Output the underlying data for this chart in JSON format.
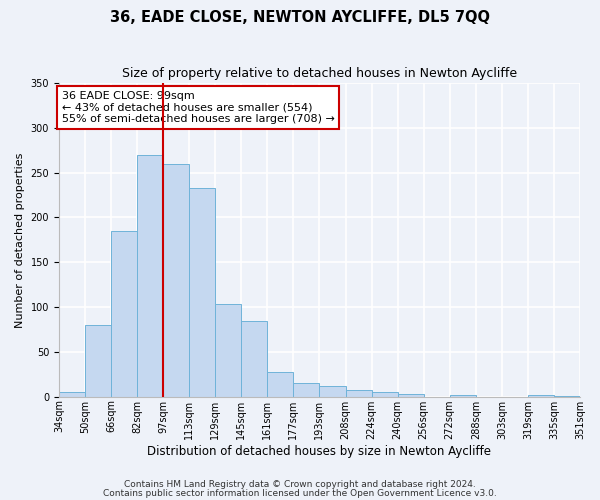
{
  "title": "36, EADE CLOSE, NEWTON AYCLIFFE, DL5 7QQ",
  "subtitle": "Size of property relative to detached houses in Newton Aycliffe",
  "xlabel": "Distribution of detached houses by size in Newton Aycliffe",
  "ylabel": "Number of detached properties",
  "bar_values": [
    5,
    80,
    185,
    270,
    260,
    233,
    103,
    85,
    27,
    15,
    12,
    7,
    5,
    3,
    0,
    2,
    0,
    0,
    2,
    1
  ],
  "bar_labels": [
    "34sqm",
    "50sqm",
    "66sqm",
    "82sqm",
    "97sqm",
    "113sqm",
    "129sqm",
    "145sqm",
    "161sqm",
    "177sqm",
    "193sqm",
    "208sqm",
    "224sqm",
    "240sqm",
    "256sqm",
    "272sqm",
    "288sqm",
    "303sqm",
    "319sqm",
    "335sqm",
    "351sqm"
  ],
  "bar_color": "#c5d8f0",
  "bar_edge_color": "#6fb3d9",
  "vline_x_index": 4,
  "vline_color": "#cc0000",
  "annotation_box_text": "36 EADE CLOSE: 99sqm\n← 43% of detached houses are smaller (554)\n55% of semi-detached houses are larger (708) →",
  "annotation_box_facecolor": "white",
  "annotation_box_edgecolor": "#cc0000",
  "ylim": [
    0,
    350
  ],
  "yticks": [
    0,
    50,
    100,
    150,
    200,
    250,
    300,
    350
  ],
  "footnote1": "Contains HM Land Registry data © Crown copyright and database right 2024.",
  "footnote2": "Contains public sector information licensed under the Open Government Licence v3.0.",
  "background_color": "#eef2f9",
  "grid_color": "#ffffff",
  "title_fontsize": 10.5,
  "subtitle_fontsize": 9,
  "xlabel_fontsize": 8.5,
  "ylabel_fontsize": 8,
  "tick_fontsize": 7,
  "annotation_fontsize": 8,
  "footnote_fontsize": 6.5
}
